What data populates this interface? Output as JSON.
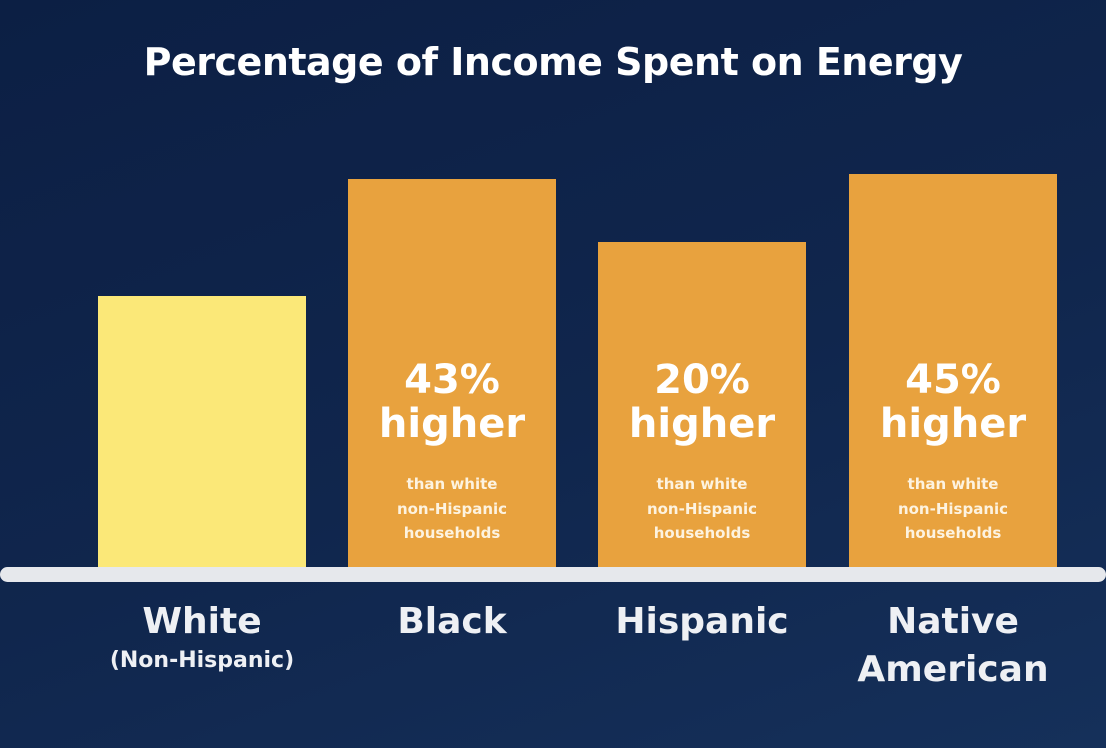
{
  "chart_data": {
    "type": "bar",
    "title": "Percentage of Income Spent on Energy",
    "categories": [
      "White",
      "Black",
      "Hispanic",
      "Native American"
    ],
    "category_sublabels": [
      "(Non-Hispanic)",
      "",
      "",
      ""
    ],
    "values": [
      100,
      143,
      120,
      145
    ],
    "value_units": "relative index (White non-Hispanic = 100)",
    "annotations": [
      null,
      {
        "pct": "43%",
        "word": "higher",
        "note": [
          "than white",
          "non-Hispanic",
          "households"
        ]
      },
      {
        "pct": "20%",
        "word": "higher",
        "note": [
          "than white",
          "non-Hispanic",
          "households"
        ]
      },
      {
        "pct": "45%",
        "word": "higher",
        "note": [
          "than white",
          "non-Hispanic",
          "households"
        ]
      }
    ],
    "colors": [
      "#fbe878",
      "#e8a23e",
      "#e8a23e",
      "#e8a23e"
    ],
    "xlabel": "",
    "ylabel": "",
    "ylim": [
      0,
      160
    ],
    "grid": false,
    "legend": "none"
  }
}
